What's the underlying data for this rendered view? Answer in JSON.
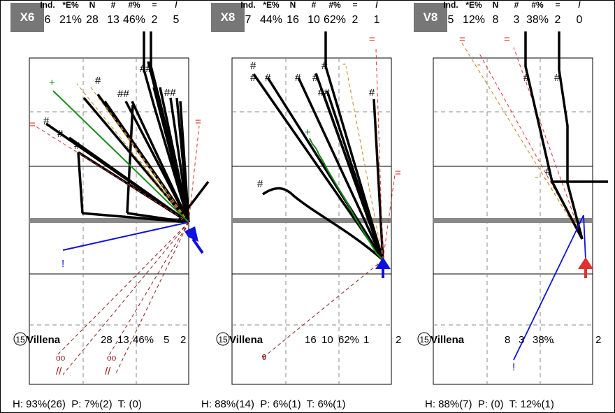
{
  "panels": [
    {
      "code": "X6",
      "headers": [
        "Ind.",
        "*E%",
        "N",
        "#",
        "#%",
        "=",
        "/"
      ],
      "values": [
        "6",
        "21%",
        "28",
        "13",
        "46%",
        "2",
        "5"
      ],
      "player": {
        "number": "15",
        "name": "Villena",
        "stats": [
          "28",
          "13",
          "46%",
          "5",
          "2"
        ]
      },
      "footer": {
        "h": "H: 93%(26)",
        "p": "P: 7%(2)",
        "t": "T: (0)"
      },
      "marks": [
        "+",
        "#",
        "#",
        "##",
        "##",
        "##",
        "#",
        "#",
        "#",
        "=",
        "=",
        "!",
        "oo",
        "oo",
        "//",
        "//"
      ]
    },
    {
      "code": "X8",
      "headers": [
        "Ind.",
        "*E%",
        "N",
        "#",
        "#%",
        "=",
        "/"
      ],
      "values": [
        "7",
        "44%",
        "16",
        "10",
        "62%",
        "2",
        "1"
      ],
      "player": {
        "number": "15",
        "name": "Villena",
        "stats": [
          "16",
          "10",
          "62%",
          "1",
          "2"
        ]
      },
      "footer": {
        "h": "H: 88%(14)",
        "p": "P: 6%(1)",
        "t": "T: 6%(1)"
      },
      "marks": [
        "#",
        "#",
        "#",
        "#",
        "#",
        "#",
        "##",
        "#",
        "-",
        "+",
        "#",
        "=",
        "=",
        "o"
      ]
    },
    {
      "code": "V8",
      "headers": [
        "Ind.",
        "*E%",
        "N",
        "#",
        "#%",
        "=",
        "/"
      ],
      "values": [
        "5",
        "12%",
        "8",
        "3",
        "38%",
        "2",
        "0"
      ],
      "player": {
        "number": "15",
        "name": "Villena",
        "stats": [
          "8",
          "3",
          "38%",
          ".",
          "2"
        ]
      },
      "footer": {
        "h": "H: 88%(7)",
        "p": "P: (0)",
        "t": "T: 12%(1)"
      },
      "marks": [
        "=",
        "=",
        "-",
        "#",
        "#",
        "#",
        "-",
        "!"
      ]
    }
  ]
}
